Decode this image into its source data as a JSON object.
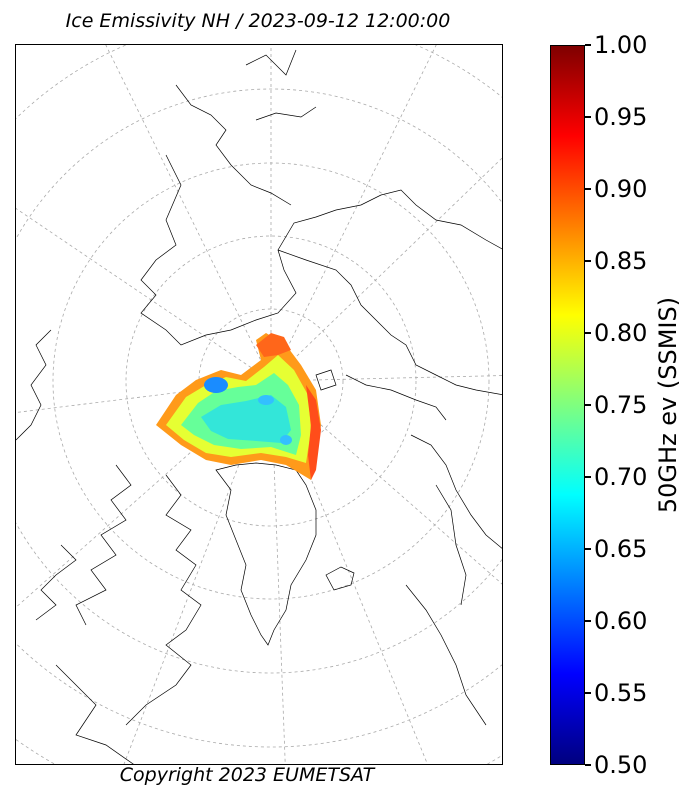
{
  "title": "Ice Emissivity NH / 2023-09-12 12:00:00",
  "copyright": "Copyright 2023 EUMETSAT",
  "colorbar": {
    "label": "50GHz ev (SSMIS)",
    "min": 0.5,
    "max": 1.0,
    "ticks": [
      "1.00",
      "0.95",
      "0.90",
      "0.85",
      "0.80",
      "0.75",
      "0.70",
      "0.65",
      "0.60",
      "0.55",
      "0.50"
    ],
    "colormap": "jet",
    "colors": [
      "#00007f",
      "#0000ff",
      "#007fff",
      "#00ffff",
      "#7fff7f",
      "#ffff00",
      "#ff7f00",
      "#ff0000",
      "#7f0000"
    ]
  },
  "map": {
    "projection": "north-polar-stereographic",
    "graticule": "dashed-gray",
    "data_field": "sea-ice-emissivity"
  }
}
